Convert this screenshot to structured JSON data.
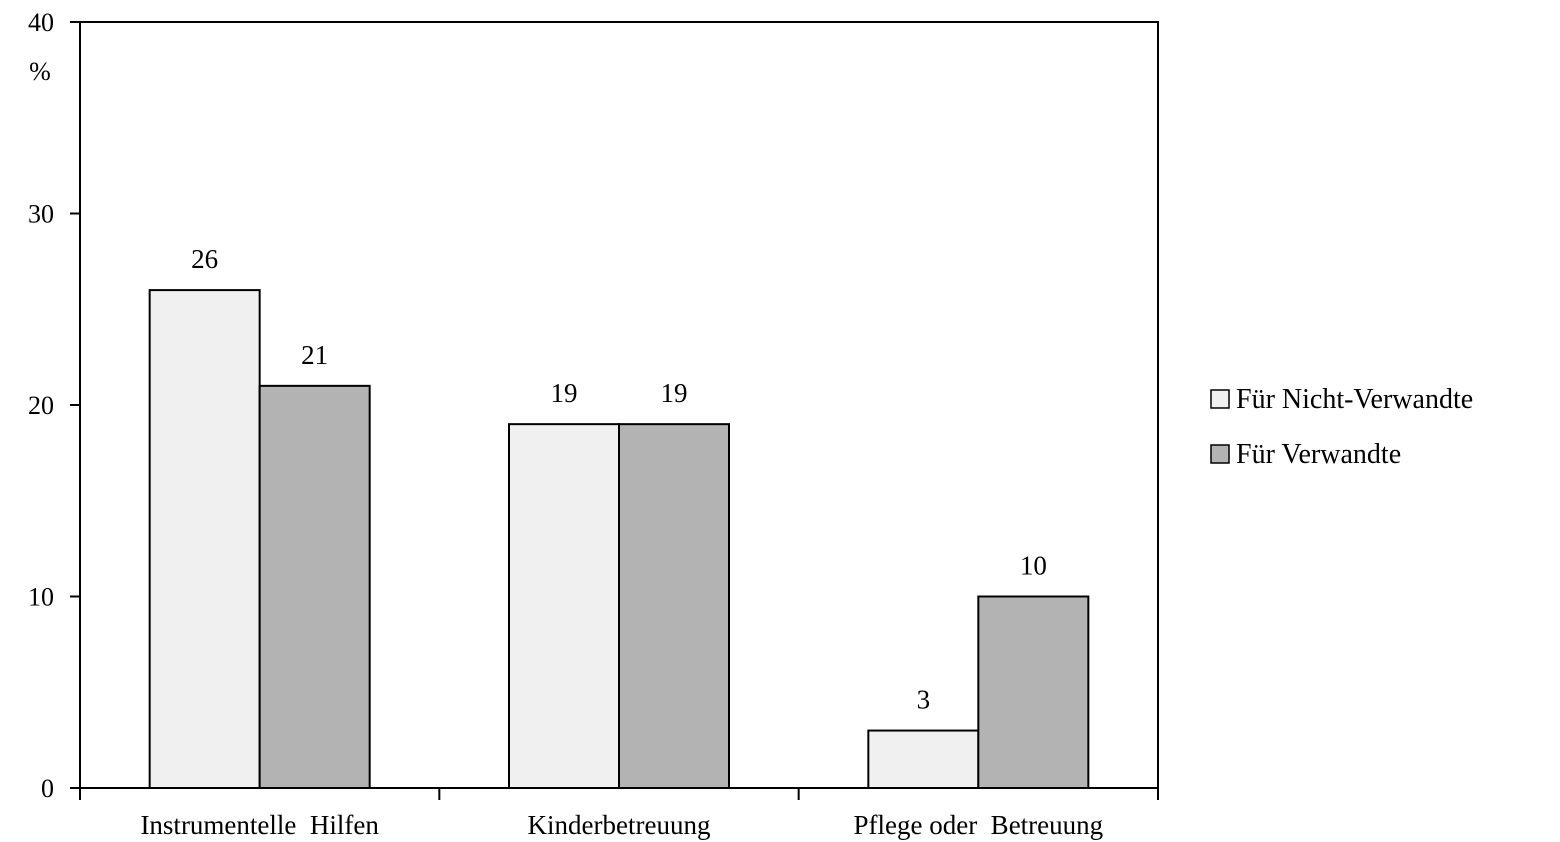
{
  "chart_data": {
    "type": "bar",
    "ylabel": "%",
    "ylim": [
      0,
      40
    ],
    "yticks": [
      0,
      10,
      20,
      30,
      40
    ],
    "grid": false,
    "legend_position": "right",
    "categories": [
      "Instrumentelle  Hilfen",
      "Kinderbetreuung",
      "Pflege oder  Betreuung"
    ],
    "series": [
      {
        "name": "Für Nicht-Verwandte",
        "color": "#f0f0f0",
        "values": [
          26,
          19,
          3
        ]
      },
      {
        "name": "Für Verwandte",
        "color": "#b3b3b3",
        "values": [
          21,
          19,
          10
        ]
      }
    ]
  }
}
